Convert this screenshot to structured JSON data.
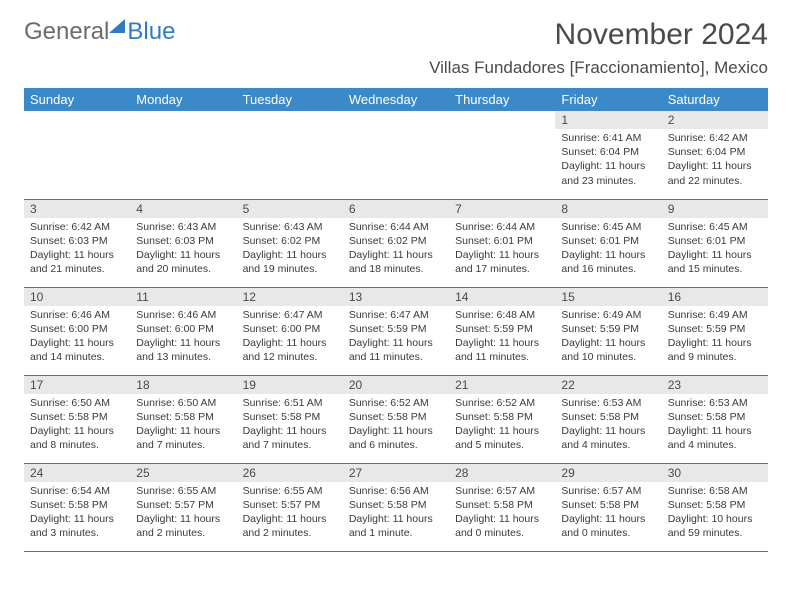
{
  "logo": {
    "textGray": "General",
    "textBlue": "Blue"
  },
  "title": "November 2024",
  "location": "Villas Fundadores [Fraccionamiento], Mexico",
  "colors": {
    "headerBg": "#3b89c9",
    "headerText": "#ffffff",
    "dayNumBg": "#e8e8e8",
    "cellBorder": "#2f7bc4",
    "textColor": "#3a3a3a",
    "titleColor": "#4a4a4a",
    "logoGray": "#6b6b6b",
    "logoBlue": "#2f7bc4",
    "pageBg": "#ffffff"
  },
  "layout": {
    "pageWidth": 792,
    "pageHeight": 612,
    "columns": 7,
    "rowHeightPx": 88,
    "headerFontSize": 13,
    "dayNumFontSize": 12,
    "bodyFontSize": 10.5,
    "titleFontSize": 30,
    "locationFontSize": 17
  },
  "dayHeaders": [
    "Sunday",
    "Monday",
    "Tuesday",
    "Wednesday",
    "Thursday",
    "Friday",
    "Saturday"
  ],
  "weeks": [
    [
      {
        "empty": true
      },
      {
        "empty": true
      },
      {
        "empty": true
      },
      {
        "empty": true
      },
      {
        "empty": true
      },
      {
        "num": "1",
        "sunrise": "Sunrise: 6:41 AM",
        "sunset": "Sunset: 6:04 PM",
        "daylight": "Daylight: 11 hours and 23 minutes."
      },
      {
        "num": "2",
        "sunrise": "Sunrise: 6:42 AM",
        "sunset": "Sunset: 6:04 PM",
        "daylight": "Daylight: 11 hours and 22 minutes."
      }
    ],
    [
      {
        "num": "3",
        "sunrise": "Sunrise: 6:42 AM",
        "sunset": "Sunset: 6:03 PM",
        "daylight": "Daylight: 11 hours and 21 minutes."
      },
      {
        "num": "4",
        "sunrise": "Sunrise: 6:43 AM",
        "sunset": "Sunset: 6:03 PM",
        "daylight": "Daylight: 11 hours and 20 minutes."
      },
      {
        "num": "5",
        "sunrise": "Sunrise: 6:43 AM",
        "sunset": "Sunset: 6:02 PM",
        "daylight": "Daylight: 11 hours and 19 minutes."
      },
      {
        "num": "6",
        "sunrise": "Sunrise: 6:44 AM",
        "sunset": "Sunset: 6:02 PM",
        "daylight": "Daylight: 11 hours and 18 minutes."
      },
      {
        "num": "7",
        "sunrise": "Sunrise: 6:44 AM",
        "sunset": "Sunset: 6:01 PM",
        "daylight": "Daylight: 11 hours and 17 minutes."
      },
      {
        "num": "8",
        "sunrise": "Sunrise: 6:45 AM",
        "sunset": "Sunset: 6:01 PM",
        "daylight": "Daylight: 11 hours and 16 minutes."
      },
      {
        "num": "9",
        "sunrise": "Sunrise: 6:45 AM",
        "sunset": "Sunset: 6:01 PM",
        "daylight": "Daylight: 11 hours and 15 minutes."
      }
    ],
    [
      {
        "num": "10",
        "sunrise": "Sunrise: 6:46 AM",
        "sunset": "Sunset: 6:00 PM",
        "daylight": "Daylight: 11 hours and 14 minutes."
      },
      {
        "num": "11",
        "sunrise": "Sunrise: 6:46 AM",
        "sunset": "Sunset: 6:00 PM",
        "daylight": "Daylight: 11 hours and 13 minutes."
      },
      {
        "num": "12",
        "sunrise": "Sunrise: 6:47 AM",
        "sunset": "Sunset: 6:00 PM",
        "daylight": "Daylight: 11 hours and 12 minutes."
      },
      {
        "num": "13",
        "sunrise": "Sunrise: 6:47 AM",
        "sunset": "Sunset: 5:59 PM",
        "daylight": "Daylight: 11 hours and 11 minutes."
      },
      {
        "num": "14",
        "sunrise": "Sunrise: 6:48 AM",
        "sunset": "Sunset: 5:59 PM",
        "daylight": "Daylight: 11 hours and 11 minutes."
      },
      {
        "num": "15",
        "sunrise": "Sunrise: 6:49 AM",
        "sunset": "Sunset: 5:59 PM",
        "daylight": "Daylight: 11 hours and 10 minutes."
      },
      {
        "num": "16",
        "sunrise": "Sunrise: 6:49 AM",
        "sunset": "Sunset: 5:59 PM",
        "daylight": "Daylight: 11 hours and 9 minutes."
      }
    ],
    [
      {
        "num": "17",
        "sunrise": "Sunrise: 6:50 AM",
        "sunset": "Sunset: 5:58 PM",
        "daylight": "Daylight: 11 hours and 8 minutes."
      },
      {
        "num": "18",
        "sunrise": "Sunrise: 6:50 AM",
        "sunset": "Sunset: 5:58 PM",
        "daylight": "Daylight: 11 hours and 7 minutes."
      },
      {
        "num": "19",
        "sunrise": "Sunrise: 6:51 AM",
        "sunset": "Sunset: 5:58 PM",
        "daylight": "Daylight: 11 hours and 7 minutes."
      },
      {
        "num": "20",
        "sunrise": "Sunrise: 6:52 AM",
        "sunset": "Sunset: 5:58 PM",
        "daylight": "Daylight: 11 hours and 6 minutes."
      },
      {
        "num": "21",
        "sunrise": "Sunrise: 6:52 AM",
        "sunset": "Sunset: 5:58 PM",
        "daylight": "Daylight: 11 hours and 5 minutes."
      },
      {
        "num": "22",
        "sunrise": "Sunrise: 6:53 AM",
        "sunset": "Sunset: 5:58 PM",
        "daylight": "Daylight: 11 hours and 4 minutes."
      },
      {
        "num": "23",
        "sunrise": "Sunrise: 6:53 AM",
        "sunset": "Sunset: 5:58 PM",
        "daylight": "Daylight: 11 hours and 4 minutes."
      }
    ],
    [
      {
        "num": "24",
        "sunrise": "Sunrise: 6:54 AM",
        "sunset": "Sunset: 5:58 PM",
        "daylight": "Daylight: 11 hours and 3 minutes."
      },
      {
        "num": "25",
        "sunrise": "Sunrise: 6:55 AM",
        "sunset": "Sunset: 5:57 PM",
        "daylight": "Daylight: 11 hours and 2 minutes."
      },
      {
        "num": "26",
        "sunrise": "Sunrise: 6:55 AM",
        "sunset": "Sunset: 5:57 PM",
        "daylight": "Daylight: 11 hours and 2 minutes."
      },
      {
        "num": "27",
        "sunrise": "Sunrise: 6:56 AM",
        "sunset": "Sunset: 5:58 PM",
        "daylight": "Daylight: 11 hours and 1 minute."
      },
      {
        "num": "28",
        "sunrise": "Sunrise: 6:57 AM",
        "sunset": "Sunset: 5:58 PM",
        "daylight": "Daylight: 11 hours and 0 minutes."
      },
      {
        "num": "29",
        "sunrise": "Sunrise: 6:57 AM",
        "sunset": "Sunset: 5:58 PM",
        "daylight": "Daylight: 11 hours and 0 minutes."
      },
      {
        "num": "30",
        "sunrise": "Sunrise: 6:58 AM",
        "sunset": "Sunset: 5:58 PM",
        "daylight": "Daylight: 10 hours and 59 minutes."
      }
    ]
  ]
}
